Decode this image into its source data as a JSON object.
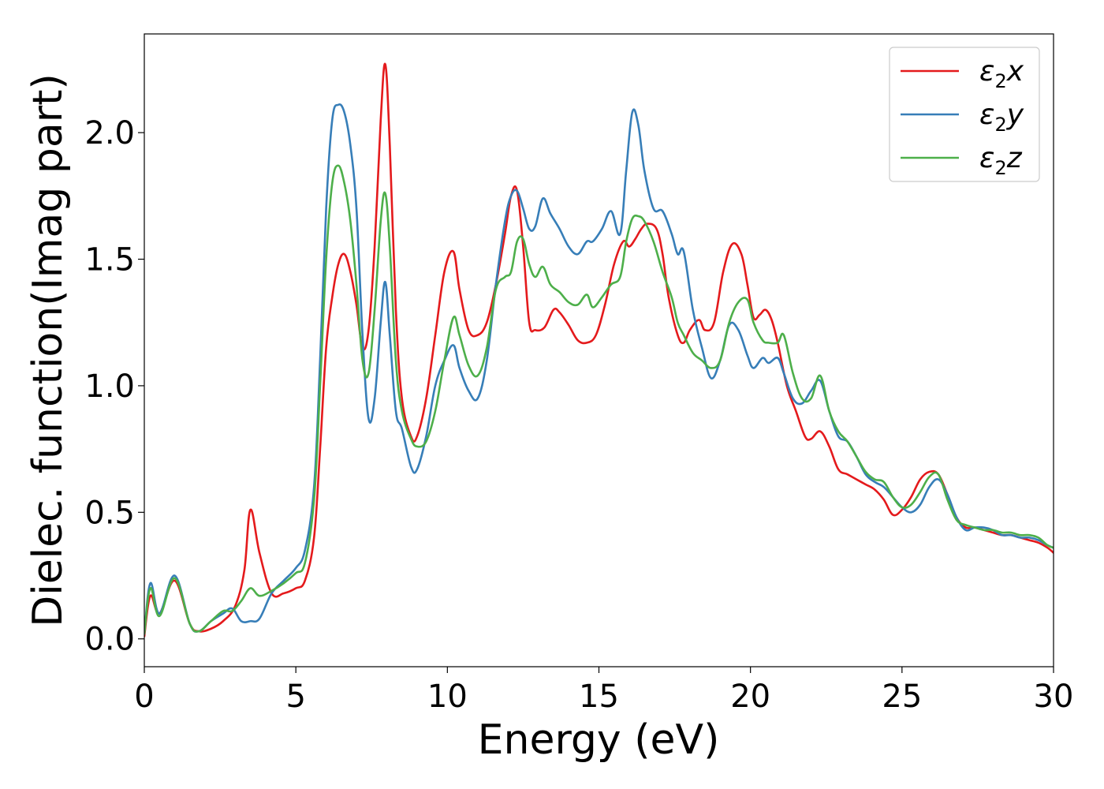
{
  "chart_data": {
    "type": "line",
    "title": "",
    "xlabel": "Energy (eV)",
    "ylabel": "Dielec. function(Imag part)",
    "xlim": [
      0,
      30
    ],
    "ylim": [
      -0.11,
      2.39
    ],
    "x_ticks": [
      0,
      5,
      10,
      15,
      20,
      25,
      30
    ],
    "x_tick_labels": [
      "0",
      "5",
      "10",
      "15",
      "20",
      "25",
      "30"
    ],
    "y_ticks": [
      0.0,
      0.5,
      1.0,
      1.5,
      2.0
    ],
    "y_tick_labels": [
      "0.0",
      "0.5",
      "1.0",
      "1.5",
      "2.0"
    ],
    "grid": false,
    "legend_position": "top-right",
    "series": [
      {
        "name": "ε2x",
        "legend_base": "ε",
        "legend_sub": "2",
        "legend_var": "x",
        "color": "#e41a1c",
        "x": [
          0,
          0.2,
          0.5,
          1.0,
          1.5,
          1.8,
          2.2,
          2.6,
          3.0,
          3.3,
          3.5,
          3.8,
          4.2,
          4.6,
          5.0,
          5.3,
          5.6,
          5.8,
          6.0,
          6.2,
          6.4,
          6.6,
          6.8,
          7.0,
          7.2,
          7.4,
          7.6,
          7.8,
          7.95,
          8.1,
          8.3,
          8.5,
          8.8,
          9.0,
          9.3,
          9.6,
          9.9,
          10.2,
          10.4,
          10.7,
          11.0,
          11.3,
          11.6,
          11.9,
          12.1,
          12.3,
          12.5,
          12.7,
          12.9,
          13.2,
          13.5,
          13.7,
          14.0,
          14.3,
          14.6,
          14.9,
          15.2,
          15.5,
          15.8,
          16.0,
          16.2,
          16.4,
          16.6,
          16.9,
          17.1,
          17.3,
          17.6,
          17.8,
          18.0,
          18.3,
          18.5,
          18.8,
          19.1,
          19.4,
          19.7,
          19.9,
          20.1,
          20.3,
          20.5,
          20.7,
          20.9,
          21.2,
          21.5,
          21.8,
          22.0,
          22.3,
          22.6,
          22.9,
          23.2,
          23.5,
          23.8,
          24.1,
          24.4,
          24.7,
          25.0,
          25.3,
          25.6,
          25.9,
          26.2,
          26.5,
          26.8,
          27.1,
          27.4,
          27.7,
          28.0,
          28.3,
          28.6,
          28.9,
          29.2,
          29.5,
          29.8,
          30.0
        ],
        "values": [
          0.01,
          0.17,
          0.1,
          0.23,
          0.06,
          0.03,
          0.04,
          0.07,
          0.13,
          0.27,
          0.51,
          0.34,
          0.18,
          0.18,
          0.2,
          0.23,
          0.4,
          0.75,
          1.15,
          1.35,
          1.48,
          1.52,
          1.45,
          1.32,
          1.15,
          1.22,
          1.55,
          2.05,
          2.27,
          1.95,
          1.3,
          0.95,
          0.8,
          0.8,
          0.95,
          1.2,
          1.45,
          1.53,
          1.38,
          1.22,
          1.2,
          1.25,
          1.4,
          1.6,
          1.75,
          1.77,
          1.55,
          1.25,
          1.22,
          1.23,
          1.3,
          1.29,
          1.24,
          1.18,
          1.17,
          1.2,
          1.32,
          1.48,
          1.57,
          1.55,
          1.58,
          1.62,
          1.64,
          1.62,
          1.52,
          1.35,
          1.2,
          1.17,
          1.22,
          1.26,
          1.22,
          1.25,
          1.45,
          1.56,
          1.52,
          1.4,
          1.27,
          1.28,
          1.3,
          1.26,
          1.17,
          1.0,
          0.9,
          0.8,
          0.79,
          0.82,
          0.76,
          0.67,
          0.65,
          0.63,
          0.61,
          0.59,
          0.55,
          0.49,
          0.51,
          0.56,
          0.63,
          0.66,
          0.65,
          0.57,
          0.48,
          0.44,
          0.44,
          0.43,
          0.42,
          0.41,
          0.41,
          0.4,
          0.39,
          0.38,
          0.36,
          0.34
        ]
      },
      {
        "name": "ε2y",
        "legend_base": "ε",
        "legend_sub": "2",
        "legend_var": "y",
        "color": "#377eb8",
        "x": [
          0,
          0.2,
          0.5,
          1.0,
          1.5,
          1.8,
          2.2,
          2.6,
          2.9,
          3.2,
          3.5,
          3.8,
          4.2,
          4.6,
          5.0,
          5.3,
          5.6,
          5.8,
          6.0,
          6.2,
          6.4,
          6.6,
          6.8,
          7.0,
          7.2,
          7.4,
          7.6,
          7.8,
          7.95,
          8.1,
          8.3,
          8.5,
          8.8,
          9.0,
          9.3,
          9.6,
          9.9,
          10.2,
          10.4,
          10.7,
          11.0,
          11.3,
          11.6,
          11.9,
          12.1,
          12.3,
          12.5,
          12.7,
          12.9,
          13.15,
          13.4,
          13.7,
          14.0,
          14.3,
          14.6,
          14.8,
          15.1,
          15.4,
          15.7,
          15.9,
          16.1,
          16.3,
          16.5,
          16.8,
          17.1,
          17.4,
          17.6,
          17.8,
          18.1,
          18.4,
          18.7,
          19.0,
          19.3,
          19.6,
          19.9,
          20.1,
          20.4,
          20.6,
          20.9,
          21.1,
          21.4,
          21.7,
          22.0,
          22.3,
          22.6,
          22.9,
          23.2,
          23.5,
          23.8,
          24.1,
          24.4,
          24.7,
          25.0,
          25.3,
          25.6,
          25.9,
          26.2,
          26.5,
          26.8,
          27.1,
          27.4,
          27.7,
          28.0,
          28.3,
          28.6,
          28.9,
          29.2,
          29.5,
          29.8,
          30.0
        ],
        "values": [
          0.02,
          0.22,
          0.1,
          0.25,
          0.06,
          0.03,
          0.07,
          0.1,
          0.12,
          0.07,
          0.07,
          0.08,
          0.18,
          0.23,
          0.28,
          0.35,
          0.6,
          1.1,
          1.7,
          2.05,
          2.11,
          2.08,
          1.95,
          1.7,
          1.2,
          0.87,
          0.95,
          1.25,
          1.41,
          1.2,
          0.9,
          0.83,
          0.68,
          0.67,
          0.8,
          1.0,
          1.1,
          1.16,
          1.07,
          0.98,
          0.95,
          1.1,
          1.4,
          1.65,
          1.75,
          1.77,
          1.7,
          1.62,
          1.63,
          1.74,
          1.68,
          1.62,
          1.55,
          1.52,
          1.57,
          1.57,
          1.62,
          1.69,
          1.6,
          1.85,
          2.08,
          2.03,
          1.85,
          1.7,
          1.69,
          1.6,
          1.52,
          1.53,
          1.3,
          1.15,
          1.03,
          1.1,
          1.24,
          1.22,
          1.12,
          1.07,
          1.11,
          1.09,
          1.11,
          1.05,
          0.95,
          0.93,
          0.98,
          1.02,
          0.9,
          0.8,
          0.78,
          0.72,
          0.65,
          0.62,
          0.6,
          0.56,
          0.52,
          0.5,
          0.53,
          0.6,
          0.63,
          0.57,
          0.48,
          0.43,
          0.44,
          0.44,
          0.43,
          0.41,
          0.41,
          0.4,
          0.4,
          0.39,
          0.37,
          0.36
        ]
      },
      {
        "name": "ε2z",
        "legend_base": "ε",
        "legend_sub": "2",
        "legend_var": "z",
        "color": "#4daf4a",
        "x": [
          0,
          0.2,
          0.5,
          1.0,
          1.5,
          1.8,
          2.2,
          2.6,
          2.9,
          3.2,
          3.5,
          3.8,
          4.2,
          4.6,
          5.0,
          5.3,
          5.6,
          5.8,
          6.0,
          6.2,
          6.4,
          6.6,
          6.8,
          7.0,
          7.2,
          7.4,
          7.6,
          7.8,
          7.95,
          8.1,
          8.3,
          8.5,
          8.8,
          9.0,
          9.3,
          9.6,
          9.9,
          10.2,
          10.4,
          10.7,
          11.0,
          11.3,
          11.6,
          11.9,
          12.1,
          12.3,
          12.5,
          12.7,
          12.9,
          13.15,
          13.4,
          13.7,
          14.0,
          14.3,
          14.6,
          14.8,
          15.1,
          15.4,
          15.7,
          15.9,
          16.1,
          16.3,
          16.5,
          16.8,
          17.1,
          17.4,
          17.6,
          17.8,
          18.1,
          18.4,
          18.7,
          19.0,
          19.3,
          19.6,
          19.9,
          20.1,
          20.4,
          20.6,
          20.9,
          21.1,
          21.4,
          21.7,
          22.0,
          22.3,
          22.6,
          22.9,
          23.2,
          23.5,
          23.8,
          24.1,
          24.4,
          24.7,
          25.0,
          25.3,
          25.6,
          25.9,
          26.2,
          26.5,
          26.8,
          27.1,
          27.4,
          27.7,
          28.0,
          28.3,
          28.6,
          28.9,
          29.2,
          29.5,
          29.8,
          30.0
        ],
        "values": [
          0.02,
          0.2,
          0.09,
          0.24,
          0.06,
          0.03,
          0.07,
          0.11,
          0.11,
          0.15,
          0.2,
          0.17,
          0.19,
          0.22,
          0.26,
          0.3,
          0.55,
          1.0,
          1.5,
          1.8,
          1.87,
          1.8,
          1.65,
          1.4,
          1.1,
          1.05,
          1.3,
          1.65,
          1.76,
          1.55,
          1.1,
          0.9,
          0.79,
          0.76,
          0.78,
          0.9,
          1.1,
          1.27,
          1.2,
          1.08,
          1.04,
          1.15,
          1.38,
          1.43,
          1.45,
          1.57,
          1.58,
          1.48,
          1.43,
          1.47,
          1.4,
          1.37,
          1.33,
          1.32,
          1.36,
          1.31,
          1.35,
          1.4,
          1.43,
          1.57,
          1.66,
          1.67,
          1.65,
          1.57,
          1.45,
          1.35,
          1.25,
          1.2,
          1.13,
          1.1,
          1.07,
          1.1,
          1.25,
          1.33,
          1.34,
          1.25,
          1.18,
          1.17,
          1.17,
          1.2,
          1.05,
          0.95,
          0.95,
          1.04,
          0.9,
          0.82,
          0.78,
          0.72,
          0.66,
          0.63,
          0.62,
          0.56,
          0.52,
          0.53,
          0.58,
          0.64,
          0.65,
          0.55,
          0.47,
          0.45,
          0.44,
          0.43,
          0.43,
          0.42,
          0.42,
          0.41,
          0.41,
          0.4,
          0.37,
          0.36
        ]
      }
    ]
  }
}
